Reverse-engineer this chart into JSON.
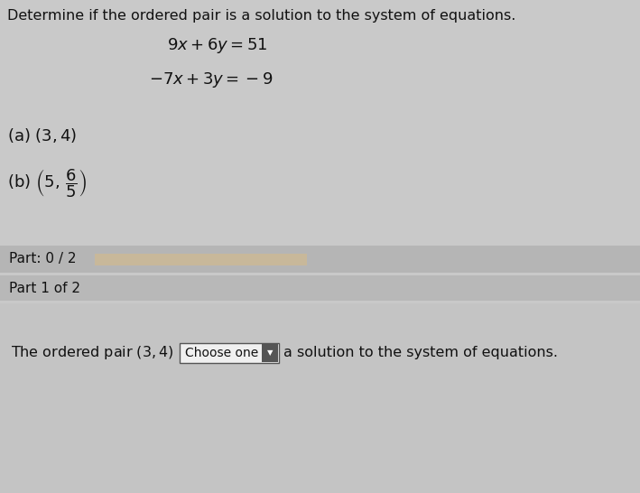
{
  "bg_color": "#c9c9c9",
  "title_text": "Determine if the ordered pair is a solution to the system of equations.",
  "eq1": "$9x+6y=51$",
  "eq2": "$-7x+3y=-9$",
  "part_a": "(a) $(3, 4)$",
  "part_b_expr": "(b) $\\left(5,\\,\\dfrac{6}{5}\\right)$",
  "part_bar_label": "Part: 0 / 2",
  "part_bar_fill": "#c8b89a",
  "part1_label": "Part 1 of 2",
  "bottom_text_before": "The ordered pair $(3, 4)$",
  "bottom_dropdown": "Choose one",
  "bottom_text_after": "a solution to the system of equations.",
  "text_color": "#111111",
  "header_bg": "#c2c2c2",
  "part_bar_bg": "#b5b5b5",
  "part1_bg": "#b8b8b8",
  "bottom_bg": "#c4c4c4",
  "dropdown_border": "#555555",
  "dropdown_bg": "#f0f0f0"
}
